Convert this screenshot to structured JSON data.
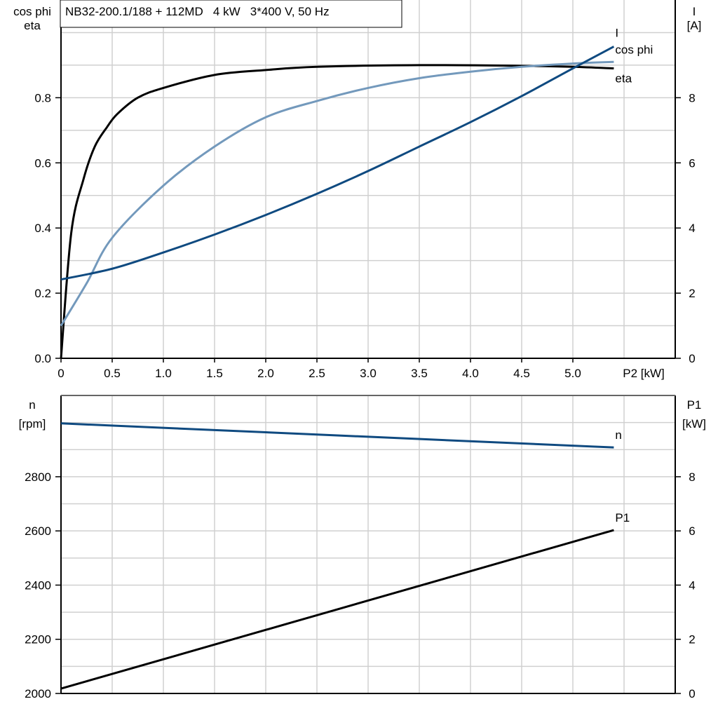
{
  "chart_data": [
    {
      "type": "line",
      "title": "NB32-200.1/188 + 112MD   4 kW   3*400 V, 50 Hz",
      "xlabel": "P2 [kW]",
      "ylabel_left": [
        "cos phi",
        "eta"
      ],
      "ylabel_right": [
        "I",
        "[A]"
      ],
      "xlim": [
        0,
        6
      ],
      "ylim_left": [
        0,
        1.1
      ],
      "ylim_right": [
        0,
        11
      ],
      "xticks": [
        "0",
        "0.5",
        "1.0",
        "1.5",
        "2.0",
        "2.5",
        "3.0",
        "3.5",
        "4.0",
        "4.5",
        "5.0"
      ],
      "yticks_left": [
        "0.0",
        "0.2",
        "0.4",
        "0.6",
        "0.8"
      ],
      "yticks_right": [
        "0",
        "2",
        "4",
        "6",
        "8"
      ],
      "grid": true,
      "series": [
        {
          "name": "eta",
          "axis": "left",
          "color": "#000000",
          "x": [
            0,
            0.1,
            0.22,
            0.33,
            0.45,
            0.55,
            0.75,
            1.0,
            1.5,
            2.0,
            2.5,
            3.5,
            4.5,
            5.0,
            5.4
          ],
          "y": [
            0,
            0.385,
            0.55,
            0.65,
            0.71,
            0.75,
            0.8,
            0.83,
            0.87,
            0.885,
            0.895,
            0.9,
            0.898,
            0.895,
            0.89
          ]
        },
        {
          "name": "cos phi",
          "axis": "left",
          "color": "#7399bc",
          "x": [
            0,
            0.25,
            0.5,
            1.0,
            1.5,
            2.0,
            2.5,
            3.0,
            3.5,
            4.0,
            4.5,
            5.0,
            5.4
          ],
          "y": [
            0.1,
            0.23,
            0.37,
            0.53,
            0.65,
            0.74,
            0.79,
            0.83,
            0.86,
            0.88,
            0.895,
            0.905,
            0.91
          ]
        },
        {
          "name": "I",
          "axis": "right",
          "color": "#0f4a80",
          "x": [
            0,
            0.5,
            1.0,
            1.5,
            2.0,
            2.5,
            3.0,
            3.5,
            4.0,
            4.5,
            5.0,
            5.4
          ],
          "y": [
            2.42,
            2.75,
            3.25,
            3.8,
            4.4,
            5.05,
            5.75,
            6.5,
            7.25,
            8.05,
            8.9,
            9.57
          ]
        }
      ]
    },
    {
      "type": "line",
      "xlim": [
        0,
        6
      ],
      "ylabel_left": [
        "n",
        "[rpm]"
      ],
      "ylabel_right": [
        "P1",
        "[kW]"
      ],
      "ylim_left": [
        2000,
        3100
      ],
      "ylim_right": [
        0,
        11
      ],
      "yticks_left": [
        "2000",
        "2200",
        "2400",
        "2600",
        "2800"
      ],
      "yticks_right": [
        "0",
        "2",
        "4",
        "6",
        "8"
      ],
      "grid": true,
      "series": [
        {
          "name": "n",
          "axis": "left",
          "color": "#0f4a80",
          "x": [
            0,
            5.4
          ],
          "y": [
            2997,
            2908
          ]
        },
        {
          "name": "P1",
          "axis": "right",
          "color": "#000000",
          "x": [
            0,
            5.4
          ],
          "y": [
            0.18,
            6.03
          ]
        }
      ]
    }
  ]
}
